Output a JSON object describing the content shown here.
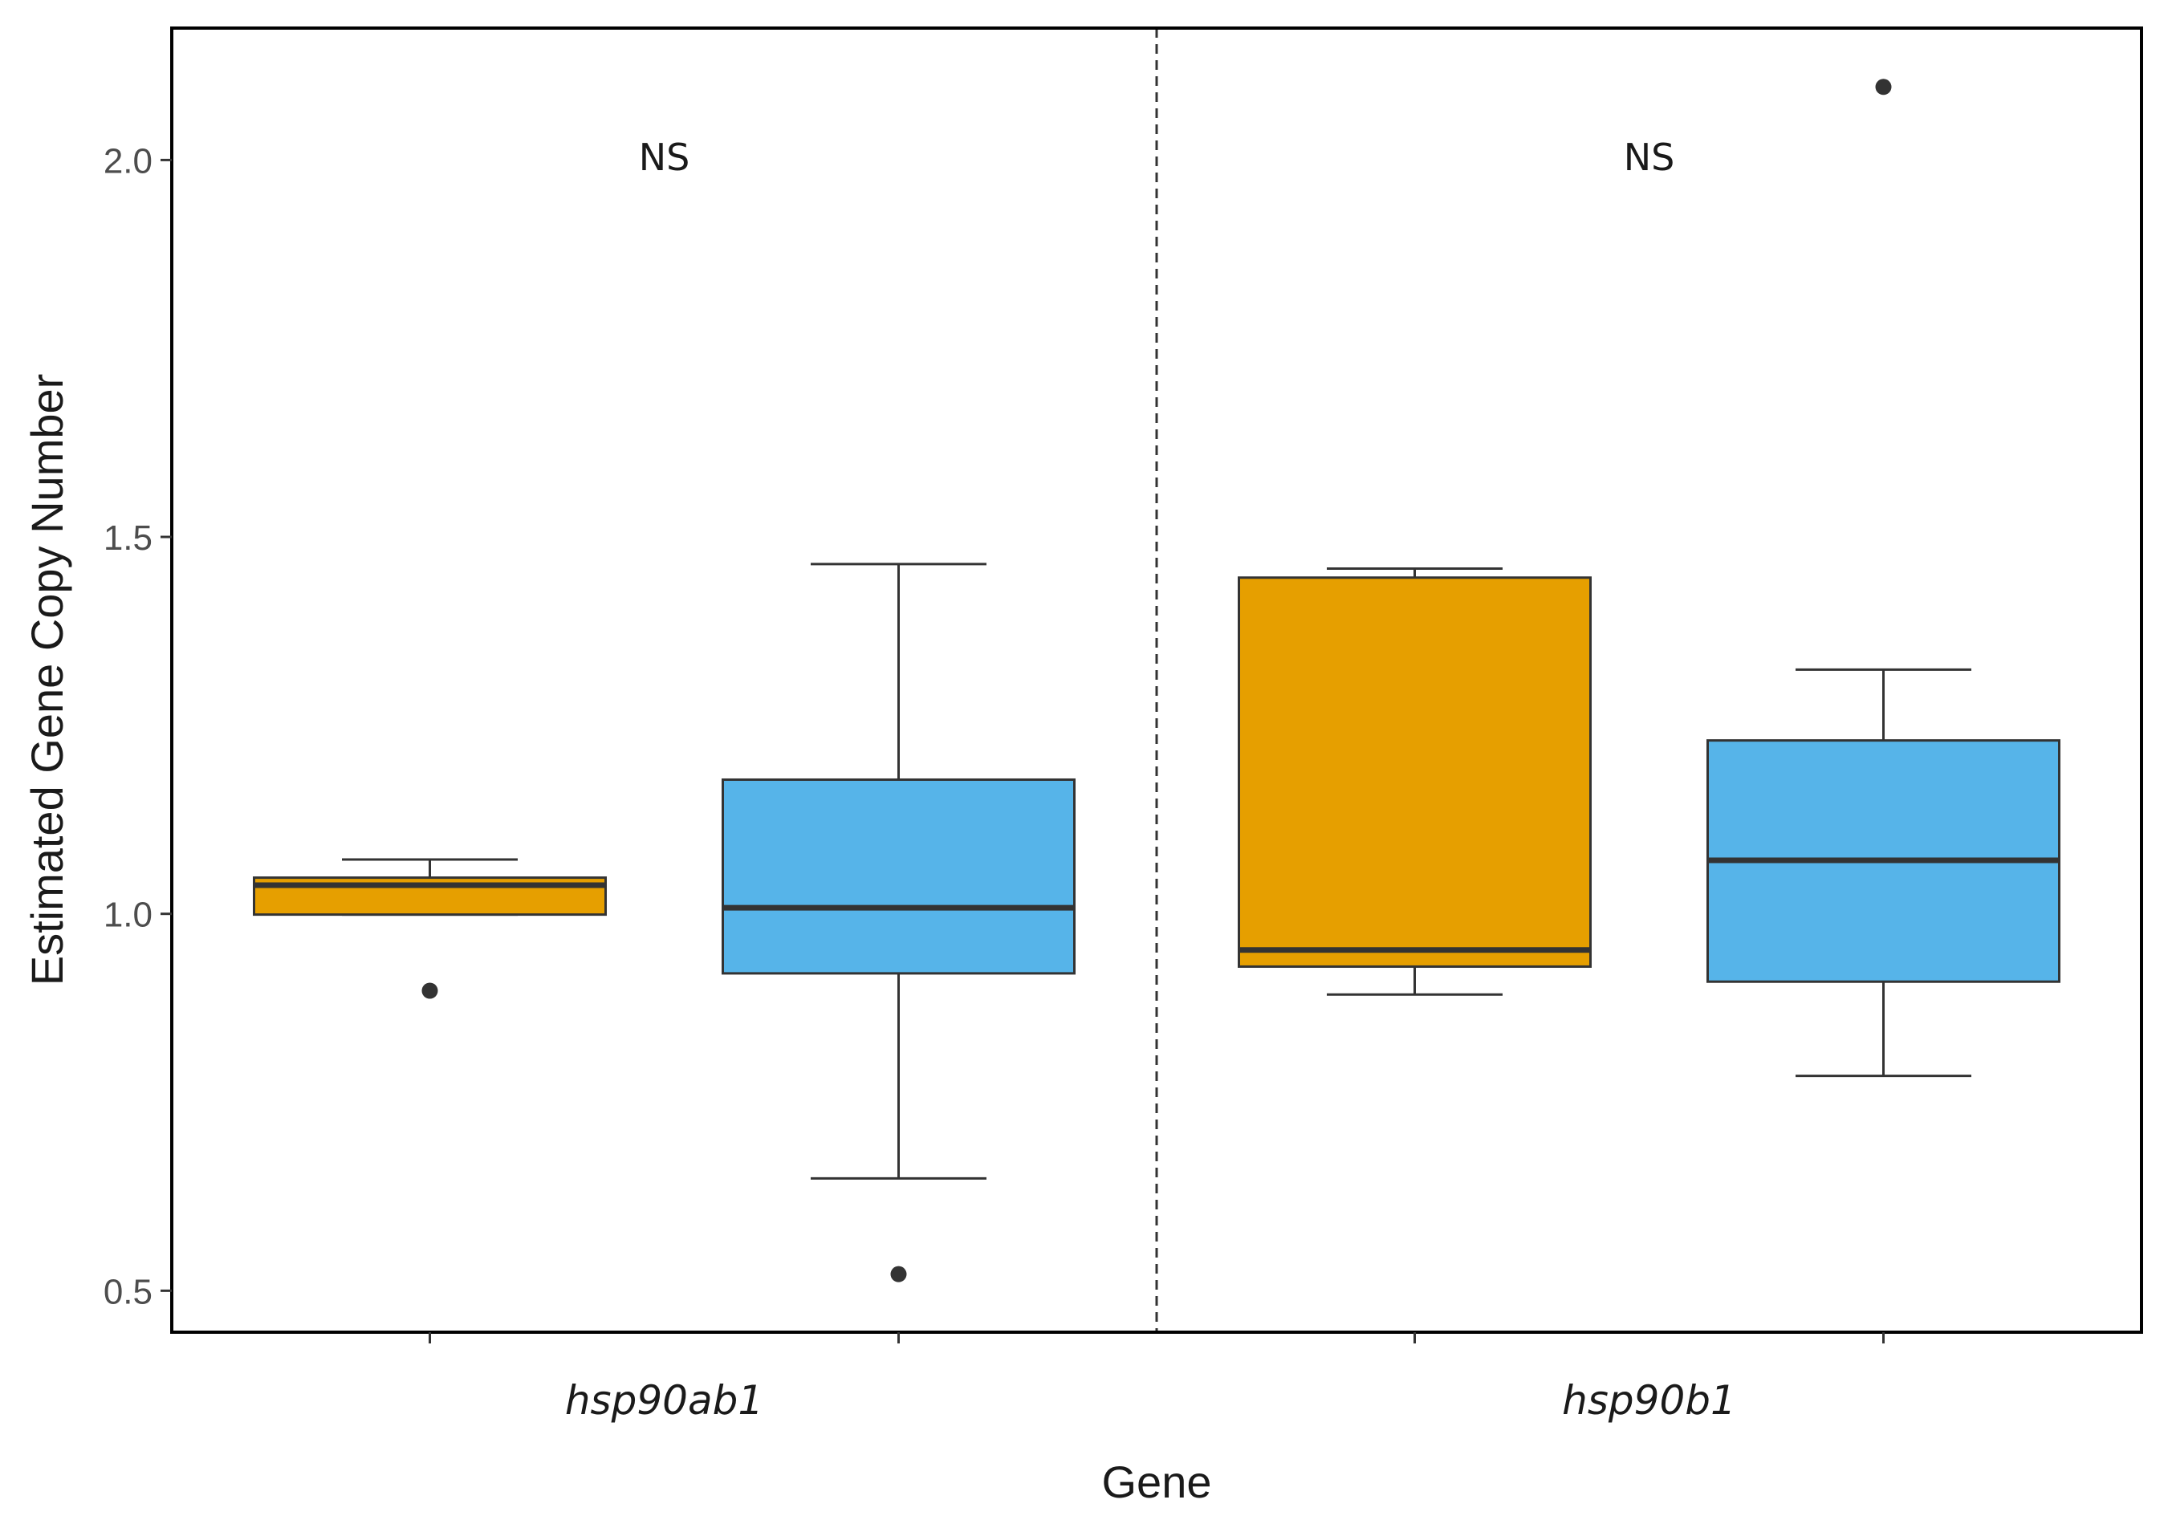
{
  "chart_data": {
    "type": "boxplot",
    "xlabel": "Gene",
    "ylabel": "Estimated Gene Copy Number",
    "ylim": [
      0.445,
      2.175
    ],
    "yticks": [
      0.5,
      1.0,
      1.5,
      2.0
    ],
    "ytick_labels": [
      "0.5",
      "1.0",
      "1.5",
      "2.0"
    ],
    "categories": [
      "hsp90ab1",
      "hsp90b1"
    ],
    "series_colors": [
      "#E69F00",
      "#56B4E9"
    ],
    "legend": "none",
    "grid": false,
    "divider": "dashed vertical line between the two genes",
    "annotations": [
      {
        "category": "hsp90ab1",
        "y": 2.01,
        "text": "NS"
      },
      {
        "category": "hsp90b1",
        "y": 2.01,
        "text": "NS"
      }
    ],
    "boxes": [
      {
        "category": "hsp90ab1",
        "group": 0,
        "color": "#E69F00",
        "whisker_low": 0.999,
        "q1": 0.999,
        "median": 1.038,
        "q3": 1.048,
        "whisker_high": 1.072,
        "outliers": [
          0.898
        ]
      },
      {
        "category": "hsp90ab1",
        "group": 1,
        "color": "#56B4E9",
        "whisker_low": 0.649,
        "q1": 0.921,
        "median": 1.008,
        "q3": 1.178,
        "whisker_high": 1.464,
        "outliers": [
          0.522
        ]
      },
      {
        "category": "hsp90b1",
        "group": 0,
        "color": "#E69F00",
        "whisker_low": 0.893,
        "q1": 0.93,
        "median": 0.952,
        "q3": 1.446,
        "whisker_high": 1.458,
        "outliers": []
      },
      {
        "category": "hsp90b1",
        "group": 1,
        "color": "#56B4E9",
        "whisker_low": 0.785,
        "q1": 0.91,
        "median": 1.071,
        "q3": 1.23,
        "whisker_high": 1.324,
        "outliers": [
          2.097
        ]
      }
    ]
  }
}
